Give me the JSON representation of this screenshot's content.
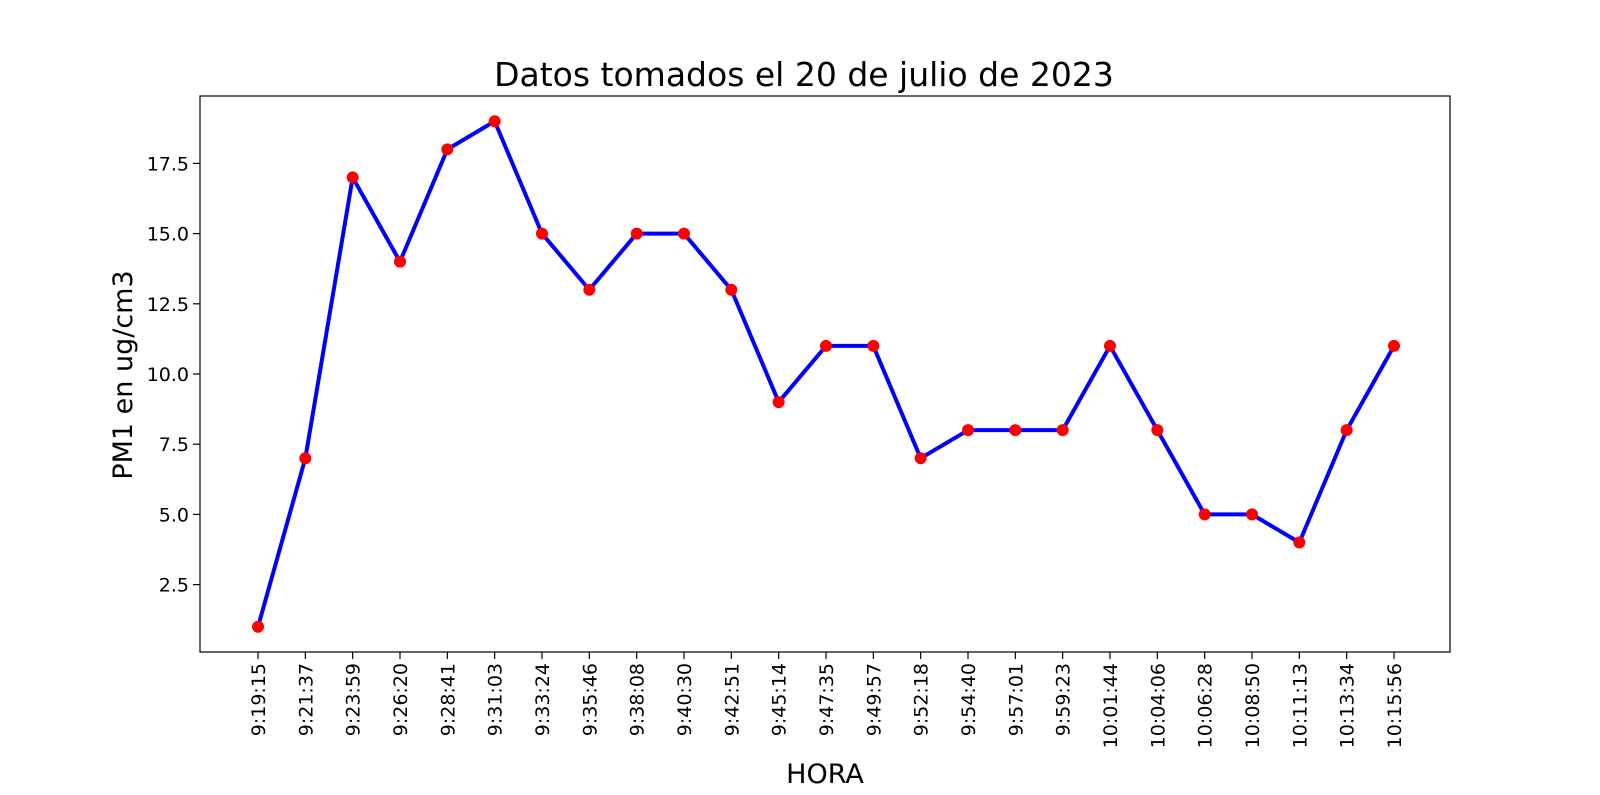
{
  "chart_data": {
    "type": "line",
    "title": "Datos tomados el 20 de julio de 2023",
    "xlabel": "HORA",
    "ylabel": "PM1 en ug/cm3",
    "categories": [
      "9:19:15",
      "9:21:37",
      "9:23:59",
      "9:26:20",
      "9:28:41",
      "9:31:03",
      "9:33:24",
      "9:35:46",
      "9:38:08",
      "9:40:30",
      "9:42:51",
      "9:45:14",
      "9:47:35",
      "9:49:57",
      "9:52:18",
      "9:54:40",
      "9:57:01",
      "9:59:23",
      "10:01:44",
      "10:04:06",
      "10:06:28",
      "10:08:50",
      "10:11:13",
      "10:13:34",
      "10:15:56"
    ],
    "series": [
      {
        "values": [
          1,
          7,
          17,
          14,
          18,
          19,
          15,
          13,
          15,
          15,
          13,
          9,
          11,
          11,
          7,
          8,
          8,
          8,
          11,
          8,
          5,
          5,
          4,
          8,
          11
        ],
        "line_color": "#0000ff",
        "marker_color": "#ff0000"
      }
    ],
    "yticks": [
      "2.5",
      "5.0",
      "7.5",
      "10.0",
      "12.5",
      "15.0",
      "17.5"
    ],
    "ylim": [
      0.1,
      19.9
    ],
    "grid": false,
    "legend": false
  }
}
